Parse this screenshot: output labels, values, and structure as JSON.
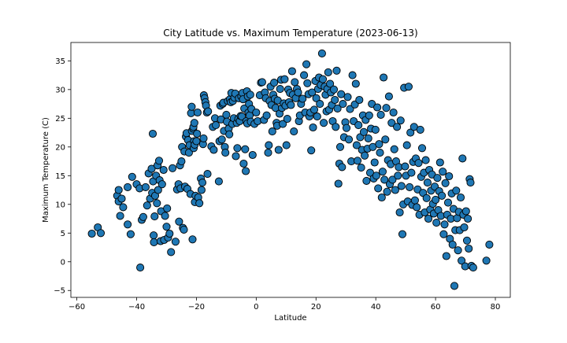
{
  "chart_data": {
    "type": "scatter",
    "title": "City Latitude vs. Maximum Temperature (2023-06-13)",
    "xlabel": "Latitude",
    "ylabel": "Maximum Temperature (C)",
    "xlim": [
      -62,
      85
    ],
    "ylim": [
      -6.2,
      38.2
    ],
    "xticks": [
      -60,
      -40,
      -20,
      0,
      20,
      40,
      60,
      80
    ],
    "yticks": [
      -5,
      0,
      5,
      10,
      15,
      20,
      25,
      30,
      35
    ],
    "grid": false,
    "legend": "none",
    "marker_color": "#1f77b4",
    "marker_edge_color": "#000000",
    "points": [
      [
        -55,
        4.9
      ],
      [
        -53,
        6
      ],
      [
        -52,
        5
      ],
      [
        -46.5,
        11.5
      ],
      [
        -46,
        12.5
      ],
      [
        -46,
        10.5
      ],
      [
        -45.5,
        8
      ],
      [
        -45,
        11
      ],
      [
        -44.5,
        9.5
      ],
      [
        -43,
        6.5
      ],
      [
        -43,
        13
      ],
      [
        -42,
        4.8
      ],
      [
        -41.5,
        14.8
      ],
      [
        -40,
        13.5
      ],
      [
        -39,
        12.8
      ],
      [
        -38.8,
        -1
      ],
      [
        -38.3,
        7.3
      ],
      [
        -37.8,
        7.8
      ],
      [
        -37,
        13
      ],
      [
        -36.5,
        9.8
      ],
      [
        -36,
        15.4
      ],
      [
        -35.5,
        11
      ],
      [
        -35,
        16.2
      ],
      [
        -34.8,
        12
      ],
      [
        -34.6,
        22.3
      ],
      [
        -34.5,
        14
      ],
      [
        -34.3,
        4.6
      ],
      [
        -34.2,
        3.4
      ],
      [
        -34,
        7.9
      ],
      [
        -33.8,
        11.5
      ],
      [
        -33.5,
        15
      ],
      [
        -33.2,
        10.2
      ],
      [
        -33,
        16.8
      ],
      [
        -32.8,
        12.5
      ],
      [
        -32.5,
        17.6
      ],
      [
        -32.3,
        14.2
      ],
      [
        -32,
        3.6
      ],
      [
        -31.8,
        8.8
      ],
      [
        -31.5,
        13.5
      ],
      [
        -31,
        16
      ],
      [
        -30.8,
        3.8
      ],
      [
        -30.5,
        8
      ],
      [
        -30,
        6.1
      ],
      [
        -29.8,
        9.3
      ],
      [
        -29.5,
        4.2
      ],
      [
        -29,
        4.9
      ],
      [
        -28.5,
        1.7
      ],
      [
        -28,
        16.3
      ],
      [
        -27,
        3.5
      ],
      [
        -26.5,
        12.6
      ],
      [
        -26,
        13.5
      ],
      [
        -25.8,
        7
      ],
      [
        -25.5,
        16.8
      ],
      [
        -25.3,
        12.8
      ],
      [
        -25,
        17.5
      ],
      [
        -24.8,
        20
      ],
      [
        -24.5,
        5.9
      ],
      [
        -24.2,
        5.6
      ],
      [
        -24,
        19.2
      ],
      [
        -23.8,
        13.1
      ],
      [
        -23.5,
        21.8
      ],
      [
        -23.3,
        22.4
      ],
      [
        -23,
        12.7
      ],
      [
        -22.8,
        21.2
      ],
      [
        -22.5,
        19
      ],
      [
        -22.3,
        20.3
      ],
      [
        -22,
        11.8
      ],
      [
        -21.8,
        25.9
      ],
      [
        -21.6,
        27
      ],
      [
        -21.5,
        22.8
      ],
      [
        -21.3,
        3.9
      ],
      [
        -21.1,
        23.2
      ],
      [
        -21,
        23.5
      ],
      [
        -20.9,
        19.8
      ],
      [
        -20.8,
        21
      ],
      [
        -20.7,
        24.2
      ],
      [
        -20.6,
        20.4
      ],
      [
        -20.5,
        10.4
      ],
      [
        -20.3,
        11.5
      ],
      [
        -20,
        21
      ],
      [
        -19.8,
        22.3
      ],
      [
        -19.6,
        26
      ],
      [
        -19.4,
        11.2
      ],
      [
        -19,
        10.2
      ],
      [
        -18.5,
        14.5
      ],
      [
        -18.3,
        12.5
      ],
      [
        -18,
        13.8
      ],
      [
        -17.8,
        20.5
      ],
      [
        -17.6,
        21.5
      ],
      [
        -17.5,
        29
      ],
      [
        -17.3,
        28.5
      ],
      [
        -17,
        27.8
      ],
      [
        -16.8,
        27.2
      ],
      [
        -16.5,
        26
      ],
      [
        -16.3,
        15.3
      ],
      [
        -16.1,
        26.2
      ],
      [
        -15,
        20.1
      ],
      [
        -14.5,
        23.5
      ],
      [
        -14.2,
        19.5
      ],
      [
        -13.8,
        25
      ],
      [
        -13.5,
        23.8
      ],
      [
        -12.5,
        14
      ],
      [
        -12.3,
        21
      ],
      [
        -12,
        27.2
      ],
      [
        -11.8,
        24.8
      ],
      [
        -11.5,
        21.3
      ],
      [
        -11.2,
        27.5
      ],
      [
        -11,
        27.7
      ],
      [
        -10.8,
        22.8
      ],
      [
        -10.5,
        20
      ],
      [
        -10.3,
        19
      ],
      [
        -10,
        25.6
      ],
      [
        -9.8,
        24.4
      ],
      [
        -9.5,
        28
      ],
      [
        -9.2,
        23.2
      ],
      [
        -9,
        22.2
      ],
      [
        -8.8,
        28.3
      ],
      [
        -8.5,
        27.8
      ],
      [
        -8.3,
        29.4
      ],
      [
        -8,
        24
      ],
      [
        -7.8,
        28
      ],
      [
        -7.5,
        25
      ],
      [
        -7.3,
        28.6
      ],
      [
        -7,
        29.3
      ],
      [
        -6.8,
        18.4
      ],
      [
        -6.5,
        24.2
      ],
      [
        -6.3,
        19.8
      ],
      [
        -6,
        24.9
      ],
      [
        -5.8,
        28.5
      ],
      [
        -5.5,
        24.5
      ],
      [
        -5.2,
        25.4
      ],
      [
        -5,
        28.8
      ],
      [
        -4.8,
        25.3
      ],
      [
        -4.6,
        29.4
      ],
      [
        -4.4,
        28.3
      ],
      [
        -4.2,
        17.1
      ],
      [
        -4,
        26.7
      ],
      [
        -3.7,
        19.6
      ],
      [
        -3.5,
        15.8
      ],
      [
        -3.3,
        24.5
      ],
      [
        -3.1,
        29.7
      ],
      [
        -3,
        24.1
      ],
      [
        -2.8,
        28.8
      ],
      [
        -2.6,
        26
      ],
      [
        -2.4,
        27.5
      ],
      [
        -2.2,
        25.5
      ],
      [
        -2,
        29.1
      ],
      [
        -1.8,
        24.4
      ],
      [
        -1.6,
        26.6
      ],
      [
        -1.2,
        18.6
      ],
      [
        -0.6,
        24
      ],
      [
        0,
        26
      ],
      [
        0.5,
        24.5
      ],
      [
        1.2,
        29
      ],
      [
        1.6,
        31.2
      ],
      [
        2,
        31.3
      ],
      [
        2.6,
        24.7
      ],
      [
        2.9,
        29.5
      ],
      [
        3.2,
        28.5
      ],
      [
        3.5,
        25.5
      ],
      [
        4,
        19
      ],
      [
        4.2,
        20.3
      ],
      [
        4.5,
        28
      ],
      [
        4.8,
        30.5
      ],
      [
        5.1,
        27.3
      ],
      [
        5.4,
        22.7
      ],
      [
        5.7,
        29.1
      ],
      [
        6,
        31.2
      ],
      [
        6.2,
        28.4
      ],
      [
        6.5,
        26.8
      ],
      [
        6.8,
        24.2
      ],
      [
        7,
        23.7
      ],
      [
        7.2,
        28.1
      ],
      [
        7.5,
        19.5
      ],
      [
        7.8,
        25.8
      ],
      [
        8,
        30.1
      ],
      [
        8.3,
        31.7
      ],
      [
        8.6,
        26.8
      ],
      [
        8.9,
        24
      ],
      [
        9.2,
        27.6
      ],
      [
        9.5,
        31.8
      ],
      [
        9.8,
        27.2
      ],
      [
        10.1,
        20.3
      ],
      [
        10.4,
        24.9
      ],
      [
        10.7,
        30
      ],
      [
        11,
        27.8
      ],
      [
        11.3,
        29.4
      ],
      [
        11.6,
        27.3
      ],
      [
        12,
        33.2
      ],
      [
        12.3,
        29.1
      ],
      [
        12.6,
        22.7
      ],
      [
        12.9,
        31.3
      ],
      [
        13.2,
        28.5
      ],
      [
        13.6,
        30.1
      ],
      [
        14,
        29.5
      ],
      [
        14.3,
        24.5
      ],
      [
        14.6,
        25.5
      ],
      [
        15,
        27.5
      ],
      [
        15.5,
        28.4
      ],
      [
        16,
        32.5
      ],
      [
        16.4,
        26
      ],
      [
        16.8,
        34.4
      ],
      [
        17.1,
        31.1
      ],
      [
        17.5,
        29.2
      ],
      [
        17.8,
        25.3
      ],
      [
        18.1,
        26
      ],
      [
        18.4,
        19.4
      ],
      [
        18.7,
        29.5
      ],
      [
        19,
        23.4
      ],
      [
        19.4,
        26.5
      ],
      [
        19.8,
        31.5
      ],
      [
        20.1,
        28.5
      ],
      [
        20.4,
        25.3
      ],
      [
        20.7,
        30.1
      ],
      [
        21,
        32.1
      ],
      [
        21.3,
        27.5
      ],
      [
        21.6,
        30.8
      ],
      [
        22,
        36.3
      ],
      [
        22.3,
        31.8
      ],
      [
        22.6,
        24.2
      ],
      [
        22.9,
        30.5
      ],
      [
        23.2,
        29.1
      ],
      [
        23.5,
        26.2
      ],
      [
        23.8,
        30.1
      ],
      [
        24.1,
        33
      ],
      [
        24.4,
        26.5
      ],
      [
        24.7,
        31
      ],
      [
        25,
        29.5
      ],
      [
        25.3,
        27.3
      ],
      [
        25.6,
        24.5
      ],
      [
        26,
        30
      ],
      [
        26.3,
        28.2
      ],
      [
        26.6,
        23.5
      ],
      [
        26.9,
        33.3
      ],
      [
        27.2,
        26.7
      ],
      [
        27.5,
        13.6
      ],
      [
        27.8,
        17.1
      ],
      [
        28.1,
        20
      ],
      [
        28.4,
        29.2
      ],
      [
        28.7,
        16.5
      ],
      [
        29,
        27.5
      ],
      [
        29.4,
        21.7
      ],
      [
        29.8,
        24.3
      ],
      [
        30.2,
        23.3
      ],
      [
        30.6,
        28.7
      ],
      [
        31,
        21.3
      ],
      [
        31.4,
        26.6
      ],
      [
        31.8,
        17.5
      ],
      [
        32.2,
        32.5
      ],
      [
        32.6,
        24.5
      ],
      [
        33,
        27.4
      ],
      [
        33.3,
        31
      ],
      [
        33.6,
        20.3
      ],
      [
        33.9,
        17.6
      ],
      [
        34.2,
        23.8
      ],
      [
        34.5,
        28.2
      ],
      [
        34.8,
        21.7
      ],
      [
        35.1,
        16.4
      ],
      [
        35.4,
        19.5
      ],
      [
        35.7,
        25.5
      ],
      [
        36,
        22.6
      ],
      [
        36.3,
        18.5
      ],
      [
        36.6,
        24.7
      ],
      [
        36.9,
        14.1
      ],
      [
        37.2,
        19.7
      ],
      [
        37.5,
        21.5
      ],
      [
        37.8,
        25.5
      ],
      [
        38.1,
        15.5
      ],
      [
        38.4,
        23.2
      ],
      [
        38.7,
        27.5
      ],
      [
        39,
        20
      ],
      [
        39.3,
        14.5
      ],
      [
        39.6,
        17.3
      ],
      [
        39.9,
        23
      ],
      [
        40.2,
        15
      ],
      [
        40.5,
        26.9
      ],
      [
        40.8,
        12.8
      ],
      [
        41.1,
        20.5
      ],
      [
        41.4,
        19
      ],
      [
        41.7,
        25.6
      ],
      [
        42,
        11.2
      ],
      [
        42.3,
        15.7
      ],
      [
        42.6,
        32.1
      ],
      [
        42.9,
        14.3
      ],
      [
        43.2,
        21.3
      ],
      [
        43.5,
        26.8
      ],
      [
        43.8,
        12.2
      ],
      [
        44.1,
        17.7
      ],
      [
        44.4,
        28.8
      ],
      [
        44.7,
        13.5
      ],
      [
        45,
        17
      ],
      [
        45.3,
        24.2
      ],
      [
        45.6,
        14.3
      ],
      [
        45.9,
        26
      ],
      [
        46.2,
        19.6
      ],
      [
        46.5,
        12.5
      ],
      [
        46.8,
        17.5
      ],
      [
        47.1,
        23.5
      ],
      [
        47.4,
        15
      ],
      [
        47.7,
        16.5
      ],
      [
        48,
        8.6
      ],
      [
        48.3,
        24.6
      ],
      [
        48.6,
        13.2
      ],
      [
        48.9,
        4.8
      ],
      [
        49.2,
        10
      ],
      [
        49.5,
        30.3
      ],
      [
        49.8,
        16.6
      ],
      [
        50.1,
        15
      ],
      [
        50.4,
        20.3
      ],
      [
        50.7,
        10.5
      ],
      [
        51,
        30.5
      ],
      [
        51.3,
        13
      ],
      [
        51.6,
        22.5
      ],
      [
        51.9,
        15.5
      ],
      [
        52.2,
        9.9
      ],
      [
        52.5,
        17.4
      ],
      [
        52.8,
        23.5
      ],
      [
        53.1,
        10.7
      ],
      [
        53.4,
        18
      ],
      [
        53.7,
        9.5
      ],
      [
        54,
        12.6
      ],
      [
        54.3,
        17.2
      ],
      [
        54.6,
        8.2
      ],
      [
        54.9,
        23
      ],
      [
        55.2,
        14.8
      ],
      [
        55.5,
        19.8
      ],
      [
        55.8,
        12
      ],
      [
        56.1,
        15.5
      ],
      [
        56.4,
        8.6
      ],
      [
        56.7,
        17.7
      ],
      [
        57,
        11.1
      ],
      [
        57.3,
        13.8
      ],
      [
        57.6,
        7.5
      ],
      [
        57.9,
        16
      ],
      [
        58.2,
        9.1
      ],
      [
        58.5,
        12.4
      ],
      [
        58.8,
        15.2
      ],
      [
        59.1,
        10.1
      ],
      [
        59.4,
        8.4
      ],
      [
        59.7,
        13.1
      ],
      [
        60,
        10.8
      ],
      [
        60.3,
        6.8
      ],
      [
        60.6,
        14.6
      ],
      [
        60.9,
        9
      ],
      [
        61.2,
        12.3
      ],
      [
        61.5,
        17.3
      ],
      [
        61.8,
        8
      ],
      [
        62.1,
        11.5
      ],
      [
        62.4,
        15.7
      ],
      [
        62.7,
        4.8
      ],
      [
        63,
        6.5
      ],
      [
        63.3,
        13.7
      ],
      [
        63.6,
        1
      ],
      [
        63.9,
        8.2
      ],
      [
        64.2,
        10.3
      ],
      [
        64.5,
        14.9
      ],
      [
        64.8,
        4
      ],
      [
        65.1,
        7.5
      ],
      [
        65.4,
        11.9
      ],
      [
        65.7,
        3
      ],
      [
        66,
        9.2
      ],
      [
        66.3,
        -4.2
      ],
      [
        66.6,
        5.5
      ],
      [
        66.9,
        12.4
      ],
      [
        67.2,
        7.6
      ],
      [
        67.5,
        2
      ],
      [
        67.8,
        8.7
      ],
      [
        68.1,
        5.5
      ],
      [
        68.4,
        11.2
      ],
      [
        68.7,
        0.2
      ],
      [
        69,
        18
      ],
      [
        69.3,
        8.2
      ],
      [
        69.6,
        6
      ],
      [
        69.9,
        -0.8
      ],
      [
        70.2,
        8.8
      ],
      [
        70.5,
        3.7
      ],
      [
        70.8,
        7.5
      ],
      [
        71.1,
        2.3
      ],
      [
        71.4,
        14.4
      ],
      [
        71.7,
        13.8
      ],
      [
        72,
        -0.7
      ],
      [
        72.6,
        -1
      ],
      [
        77,
        0.2
      ],
      [
        78,
        3
      ]
    ]
  }
}
